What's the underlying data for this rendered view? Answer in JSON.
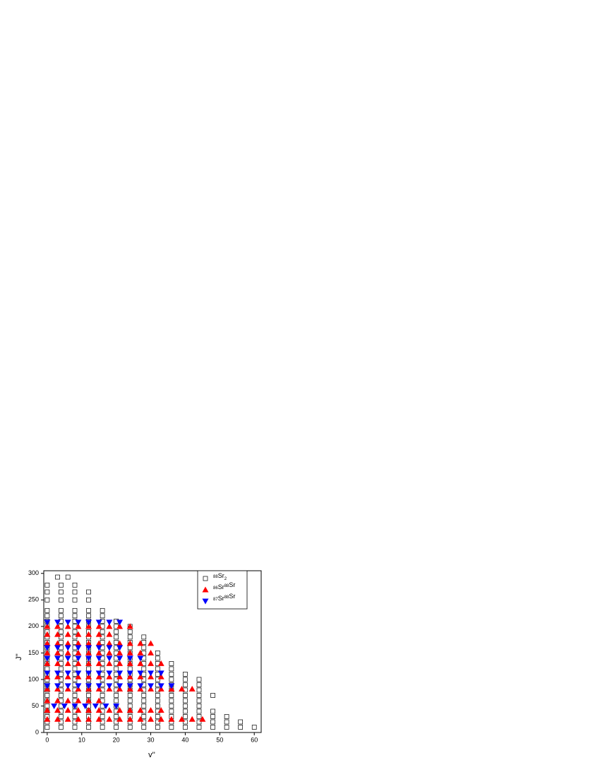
{
  "chart_data": {
    "type": "scatter",
    "x_label": "v''",
    "y_label": "J''",
    "xlim": [
      -1,
      62
    ],
    "xticks": [
      0,
      10,
      20,
      30,
      40,
      50,
      60
    ],
    "ylim": [
      0,
      305
    ],
    "yticks": [
      0,
      50,
      100,
      150,
      200,
      250,
      300
    ],
    "legend": "upper right",
    "series": [
      {
        "name": "88Sr2",
        "color": "#000000",
        "marker": "square-open",
        "x": [
          0,
          4,
          8,
          12,
          16,
          20,
          24,
          28,
          32,
          36,
          40,
          44,
          48,
          52,
          56,
          60,
          0,
          4,
          8,
          12,
          16,
          20,
          24,
          28,
          32,
          36,
          40,
          44,
          48,
          52,
          56,
          0,
          4,
          8,
          12,
          16,
          20,
          24,
          28,
          32,
          36,
          40,
          44,
          48,
          52,
          0,
          4,
          8,
          12,
          16,
          20,
          24,
          28,
          32,
          36,
          40,
          44,
          48,
          0,
          4,
          8,
          12,
          16,
          20,
          24,
          28,
          32,
          36,
          40,
          44,
          0,
          4,
          8,
          12,
          16,
          20,
          24,
          28,
          32,
          36,
          40,
          44,
          0,
          4,
          8,
          12,
          16,
          20,
          24,
          28,
          32,
          36,
          40,
          44,
          48,
          0,
          4,
          8,
          12,
          16,
          20,
          24,
          28,
          32,
          36,
          40,
          44,
          0,
          4,
          8,
          12,
          16,
          20,
          24,
          28,
          32,
          36,
          40,
          44,
          0,
          4,
          8,
          12,
          16,
          20,
          24,
          28,
          32,
          36,
          40,
          44,
          0,
          4,
          8,
          12,
          16,
          20,
          24,
          28,
          32,
          36,
          40,
          0,
          4,
          8,
          12,
          16,
          20,
          24,
          28,
          32,
          36,
          0,
          4,
          8,
          12,
          16,
          20,
          24,
          28,
          32,
          36,
          0,
          4,
          8,
          12,
          16,
          20,
          24,
          28,
          32,
          0,
          4,
          8,
          12,
          16,
          20,
          24,
          28,
          32,
          0,
          4,
          8,
          12,
          16,
          20,
          24,
          28,
          0,
          4,
          8,
          12,
          16,
          20,
          24,
          28,
          0,
          4,
          8,
          12,
          16,
          20,
          24,
          28,
          0,
          4,
          8,
          12,
          16,
          20,
          24,
          0,
          4,
          8,
          12,
          16,
          20,
          24,
          0,
          4,
          8,
          12,
          16,
          20,
          0,
          4,
          8,
          12,
          16,
          0,
          4,
          8,
          12,
          16,
          0,
          4,
          8,
          12,
          0,
          4,
          8,
          12,
          0,
          4,
          8,
          3,
          6
        ],
        "values": [
          10,
          10,
          10,
          10,
          10,
          10,
          10,
          10,
          10,
          10,
          10,
          10,
          10,
          10,
          10,
          10,
          20,
          20,
          20,
          20,
          20,
          20,
          20,
          20,
          20,
          20,
          20,
          20,
          20,
          20,
          20,
          30,
          30,
          30,
          30,
          30,
          30,
          30,
          30,
          30,
          30,
          30,
          30,
          30,
          30,
          40,
          40,
          40,
          40,
          40,
          40,
          40,
          40,
          40,
          40,
          40,
          40,
          40,
          50,
          50,
          50,
          50,
          50,
          50,
          50,
          50,
          50,
          50,
          50,
          50,
          60,
          60,
          60,
          60,
          60,
          60,
          60,
          60,
          60,
          60,
          60,
          60,
          70,
          70,
          70,
          70,
          70,
          70,
          70,
          70,
          70,
          70,
          70,
          70,
          70,
          80,
          80,
          80,
          80,
          80,
          80,
          80,
          80,
          80,
          80,
          80,
          80,
          90,
          90,
          90,
          90,
          90,
          90,
          90,
          90,
          90,
          90,
          90,
          90,
          100,
          100,
          100,
          100,
          100,
          100,
          100,
          100,
          100,
          100,
          100,
          100,
          110,
          110,
          110,
          110,
          110,
          110,
          110,
          110,
          110,
          110,
          110,
          120,
          120,
          120,
          120,
          120,
          120,
          120,
          120,
          120,
          120,
          130,
          130,
          130,
          130,
          130,
          130,
          130,
          130,
          130,
          130,
          140,
          140,
          140,
          140,
          140,
          140,
          140,
          140,
          140,
          150,
          150,
          150,
          150,
          150,
          150,
          150,
          150,
          150,
          160,
          160,
          160,
          160,
          160,
          160,
          160,
          160,
          170,
          170,
          170,
          170,
          170,
          170,
          170,
          170,
          180,
          180,
          180,
          180,
          180,
          180,
          180,
          180,
          190,
          190,
          190,
          190,
          190,
          190,
          190,
          200,
          200,
          200,
          200,
          200,
          200,
          200,
          210,
          210,
          210,
          210,
          210,
          210,
          220,
          220,
          220,
          220,
          220,
          230,
          230,
          230,
          230,
          230,
          250,
          250,
          250,
          250,
          265,
          265,
          265,
          265,
          278,
          278,
          278,
          293,
          293
        ]
      },
      {
        "name": "86Sr88Sr",
        "color": "#ff0000",
        "marker": "triangle-up",
        "x": [
          0,
          3,
          6,
          9,
          12,
          15,
          18,
          21,
          24,
          27,
          30,
          33,
          36,
          39,
          42,
          45,
          0,
          3,
          6,
          9,
          12,
          15,
          18,
          21,
          24,
          27,
          30,
          33,
          0,
          3,
          6,
          9,
          12,
          15,
          0,
          3,
          6,
          9,
          12,
          15,
          18,
          21,
          24,
          27,
          30,
          33,
          36,
          39,
          42,
          0,
          3,
          6,
          9,
          12,
          15,
          18,
          21,
          24,
          27,
          30,
          33,
          0,
          3,
          6,
          9,
          12,
          15,
          18,
          21,
          24,
          27,
          30,
          33,
          0,
          3,
          6,
          9,
          12,
          15,
          18,
          21,
          24,
          27,
          30,
          0,
          3,
          6,
          9,
          12,
          15,
          18,
          21,
          24,
          27,
          30,
          0,
          3,
          6,
          9,
          12,
          15,
          18,
          0,
          3,
          6,
          9,
          12,
          15,
          18,
          21,
          24
        ],
        "values": [
          25,
          25,
          25,
          25,
          25,
          25,
          25,
          25,
          25,
          25,
          25,
          25,
          25,
          25,
          25,
          25,
          42,
          42,
          42,
          42,
          42,
          42,
          42,
          42,
          42,
          42,
          42,
          42,
          60,
          60,
          60,
          60,
          60,
          60,
          82,
          82,
          82,
          82,
          82,
          82,
          82,
          82,
          82,
          82,
          82,
          82,
          82,
          82,
          82,
          105,
          105,
          105,
          105,
          105,
          105,
          105,
          105,
          105,
          105,
          105,
          105,
          130,
          130,
          130,
          130,
          130,
          130,
          130,
          130,
          130,
          130,
          130,
          130,
          150,
          150,
          150,
          150,
          150,
          150,
          150,
          150,
          150,
          150,
          150,
          168,
          168,
          168,
          168,
          168,
          168,
          168,
          168,
          168,
          168,
          168,
          185,
          185,
          185,
          185,
          185,
          185,
          185,
          200,
          200,
          200,
          200,
          200,
          200,
          200,
          200,
          200
        ]
      },
      {
        "name": "87Sr88Sr",
        "color": "#0000ff",
        "marker": "triangle-down",
        "x": [
          2,
          5,
          8,
          11,
          14,
          17,
          20,
          0,
          3,
          6,
          9,
          12,
          15,
          18,
          21,
          24,
          27,
          30,
          33,
          36,
          0,
          3,
          6,
          9,
          12,
          15,
          18,
          21,
          24,
          27,
          30,
          33,
          0,
          3,
          6,
          9,
          12,
          15,
          18,
          21,
          24,
          27,
          0,
          3,
          6,
          9,
          12,
          15,
          18,
          21,
          0,
          3,
          6,
          9,
          12,
          15,
          18,
          21
        ],
        "values": [
          50,
          50,
          50,
          50,
          50,
          50,
          50,
          88,
          88,
          88,
          88,
          88,
          88,
          88,
          88,
          88,
          88,
          88,
          88,
          88,
          112,
          112,
          112,
          112,
          112,
          112,
          112,
          112,
          112,
          112,
          112,
          112,
          140,
          140,
          140,
          140,
          140,
          140,
          140,
          140,
          140,
          140,
          160,
          160,
          160,
          160,
          160,
          160,
          160,
          160,
          208,
          208,
          208,
          208,
          208,
          208,
          208,
          208
        ]
      }
    ]
  }
}
